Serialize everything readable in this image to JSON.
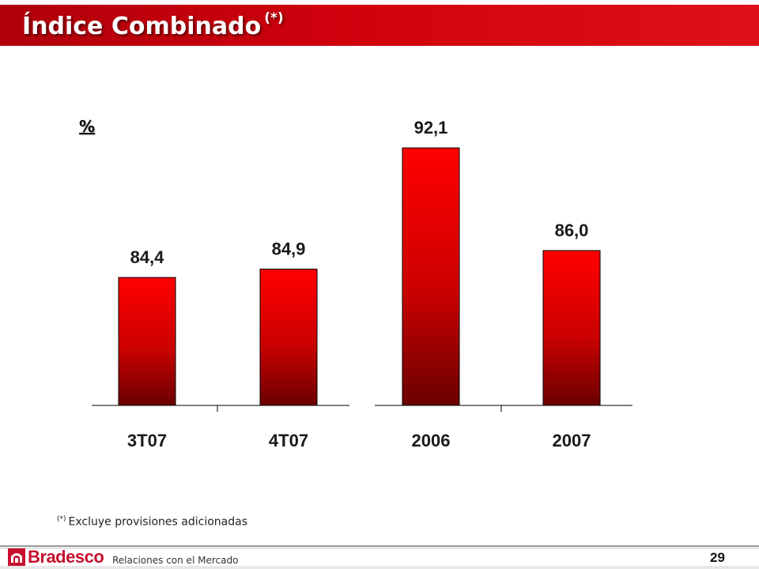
{
  "header": {
    "title": "Índice Combinado",
    "title_note": "(*)",
    "accent_color": "#c8101a"
  },
  "chart_data": [
    {
      "type": "bar",
      "unit": "%",
      "categories": [
        "3T07",
        "4T07"
      ],
      "values": [
        84.4,
        84.9
      ],
      "labels": [
        "84,4",
        "84,9"
      ]
    },
    {
      "type": "bar",
      "categories": [
        "2006",
        "2007"
      ],
      "values": [
        92.1,
        86.0
      ],
      "labels": [
        "92,1",
        "86,0"
      ]
    }
  ],
  "footnote": {
    "marker": "(*)",
    "text": "Excluye provisiones adicionadas"
  },
  "footer": {
    "brand": "Bradesco",
    "subtitle": "Relaciones con el Mercado",
    "page_number": "29",
    "logo_icon": "bradesco-logo-icon"
  }
}
